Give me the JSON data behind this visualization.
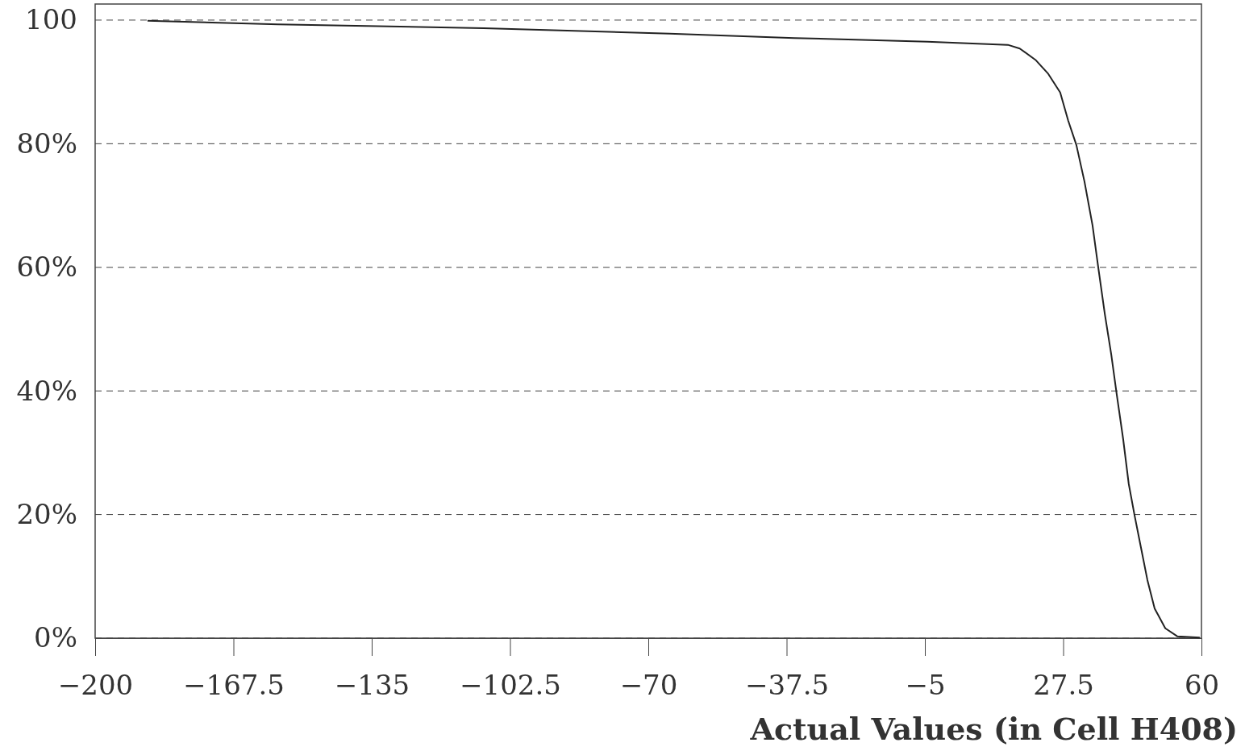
{
  "chart_data": {
    "type": "line",
    "xlabel": "Actual Values (in Cell H408)",
    "x": [
      -187.7,
      -157,
      -108.7,
      -65,
      -35.7,
      -4.4,
      14.5,
      17.3,
      21.1,
      24,
      26.8,
      28.7,
      30.6,
      32.5,
      34.4,
      35.7,
      37.3,
      38.8,
      40.1,
      41.6,
      42.9,
      44.3,
      45.8,
      47.3,
      49,
      51.5,
      54.3,
      59.6
    ],
    "series": [
      {
        "color": "#222222",
        "values": [
          99.9,
          99.3,
          98.7,
          97.8,
          97.1,
          96.5,
          96.0,
          95.4,
          93.5,
          91.3,
          88.3,
          83.7,
          79.8,
          73.9,
          66.8,
          60.2,
          52.4,
          45.9,
          39.4,
          32.2,
          25.0,
          19.8,
          14.6,
          9.4,
          4.8,
          1.6,
          0.3,
          0.1
        ]
      }
    ],
    "xlim": [
      -200,
      60
    ],
    "xticks": [
      -200,
      -167.5,
      -135,
      -102.5,
      -70,
      -37.5,
      -5,
      27.5,
      60
    ],
    "ylim": [
      0,
      102.6
    ],
    "yticks": [
      {
        "value": 0,
        "label": "0%"
      },
      {
        "value": 20,
        "label": "20%"
      },
      {
        "value": 40,
        "label": "40%"
      },
      {
        "value": 60,
        "label": "60%"
      },
      {
        "value": 80,
        "label": "80%"
      },
      {
        "value": 100,
        "label": "100"
      }
    ],
    "grid": "y",
    "line_style": "solid"
  }
}
